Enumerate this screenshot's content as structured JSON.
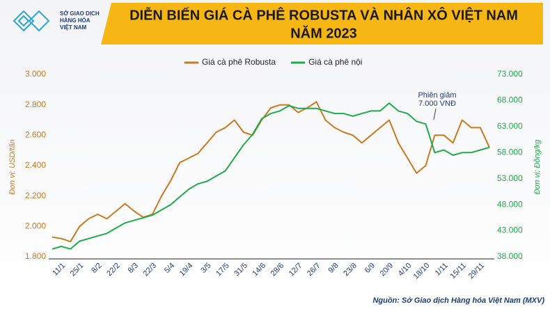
{
  "logo": {
    "lines": [
      "SỞ GIAO DỊCH",
      "HÀNG HÓA",
      "VIỆT NAM"
    ]
  },
  "chart_data": {
    "type": "line",
    "title": [
      "DIỄN BIẾN GIÁ CÀ PHÊ ROBUSTA VÀ NHÂN XÔ VIỆT NAM",
      "NĂM 2023"
    ],
    "y_label": "Đơn vị: USD/tấn",
    "y2_label": "Đơn vị: Đồng/kg",
    "annotation": [
      "Phiên giảm",
      "7.000 VNĐ"
    ],
    "source": "Nguồn: Sở Giao dịch Hàng hóa Việt Nam (MXV)",
    "legend_position": "top",
    "grid": false,
    "categories": [
      null,
      "11/1",
      null,
      "25/1",
      null,
      "8/2",
      null,
      "22/2",
      null,
      "8/3",
      null,
      "22/3",
      null,
      "5/4",
      null,
      "19/4",
      null,
      "3/5",
      null,
      "17/5",
      null,
      "31/5",
      null,
      "14/6",
      null,
      "28/6",
      null,
      "12/7",
      null,
      "26/7",
      null,
      "9/8",
      null,
      "23/8",
      null,
      "6/9",
      null,
      "20/9",
      null,
      "4/10",
      null,
      "18/10",
      null,
      "1/11",
      null,
      "15/11",
      null,
      "29/11",
      null
    ],
    "series": [
      {
        "name": "Giá cà phê Robusta",
        "color": "#c87a22",
        "axis": "y",
        "values": [
          1930,
          1920,
          1900,
          2000,
          2050,
          2080,
          2050,
          2100,
          2150,
          2100,
          2060,
          2080,
          2200,
          2300,
          2420,
          2450,
          2480,
          2550,
          2620,
          2650,
          2700,
          2620,
          2600,
          2700,
          2780,
          2800,
          2800,
          2750,
          2780,
          2820,
          2700,
          2650,
          2620,
          2600,
          2550,
          2600,
          2650,
          2700,
          2550,
          2450,
          2350,
          2400,
          2600,
          2600,
          2550,
          2700,
          2650,
          2650,
          2520
        ]
      },
      {
        "name": "Giá cà phê nội",
        "color": "#1faa4b",
        "axis": "y2",
        "values": [
          39500,
          40000,
          39500,
          41000,
          41500,
          42000,
          42500,
          43500,
          44500,
          45000,
          45500,
          46000,
          47000,
          48000,
          49500,
          51000,
          52000,
          52500,
          53500,
          54500,
          57000,
          59500,
          61500,
          64500,
          65500,
          66000,
          67000,
          66500,
          66500,
          66500,
          66000,
          65500,
          65500,
          65000,
          65500,
          66000,
          66000,
          67500,
          66000,
          65500,
          64000,
          63500,
          58000,
          58500,
          57500,
          58000,
          58000,
          58500,
          59000
        ]
      }
    ],
    "ylim": [
      1800,
      3000
    ],
    "yticks": [
      {
        "value": 1800,
        "label": "1.800"
      },
      {
        "value": 2000,
        "label": "2.000"
      },
      {
        "value": 2200,
        "label": "2.200"
      },
      {
        "value": 2400,
        "label": "2.400"
      },
      {
        "value": 2600,
        "label": "2.600"
      },
      {
        "value": 2800,
        "label": "2.800"
      },
      {
        "value": 3000,
        "label": "3.000"
      }
    ],
    "y2lim": [
      38000,
      73000
    ],
    "y2ticks": [
      {
        "value": 38000,
        "label": "38.000"
      },
      {
        "value": 43000,
        "label": "43.000"
      },
      {
        "value": 48000,
        "label": "48.000"
      },
      {
        "value": 53000,
        "label": "53.000"
      },
      {
        "value": 58000,
        "label": "58.000"
      },
      {
        "value": 63000,
        "label": "63.000"
      },
      {
        "value": 68000,
        "label": "68.000"
      },
      {
        "value": 73000,
        "label": "73.000"
      }
    ]
  }
}
